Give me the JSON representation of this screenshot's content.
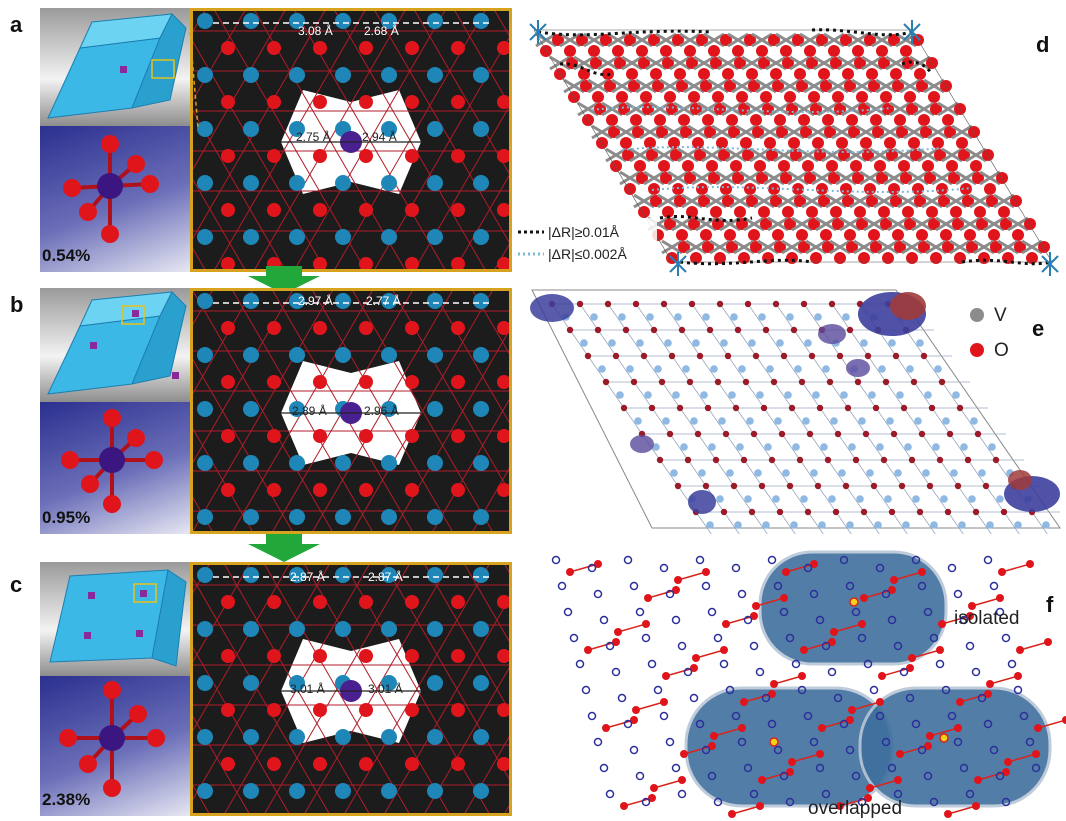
{
  "panels": {
    "a": {
      "letter": "a",
      "percent": "0.54%",
      "top_left": "3.08 Å",
      "top_right": "2.68 Å",
      "mid_left": "2.75 Å",
      "mid_right": "2.94 Å"
    },
    "b": {
      "letter": "b",
      "percent": "0.95%",
      "top_left": "2.97 Å",
      "top_right": "2.77 Å",
      "mid_left": "2.89 Å",
      "mid_right": "2.96 Å"
    },
    "c": {
      "letter": "c",
      "percent": "2.38%",
      "top_left": "2.87 Å",
      "top_right": "2.87 Å",
      "mid_left": "3.01 Å",
      "mid_right": "3.01 Å"
    },
    "d": {
      "letter": "d",
      "legend_large": "|ΔR|≥0.01Å",
      "legend_small": "|ΔR|≤0.002Å"
    },
    "e": {
      "letter": "e",
      "legend_v": "V",
      "legend_o": "O"
    },
    "f": {
      "letter": "f",
      "label_isolated": "isolated",
      "label_overlapped": "overlapped"
    }
  },
  "colors": {
    "oxygen": "#e0151c",
    "vanadium": "#1f86b8",
    "dopant": "#4a1f8f",
    "frame": "#d7a21e",
    "arrow": "#22a83a",
    "blob": "#3f6f9e"
  }
}
